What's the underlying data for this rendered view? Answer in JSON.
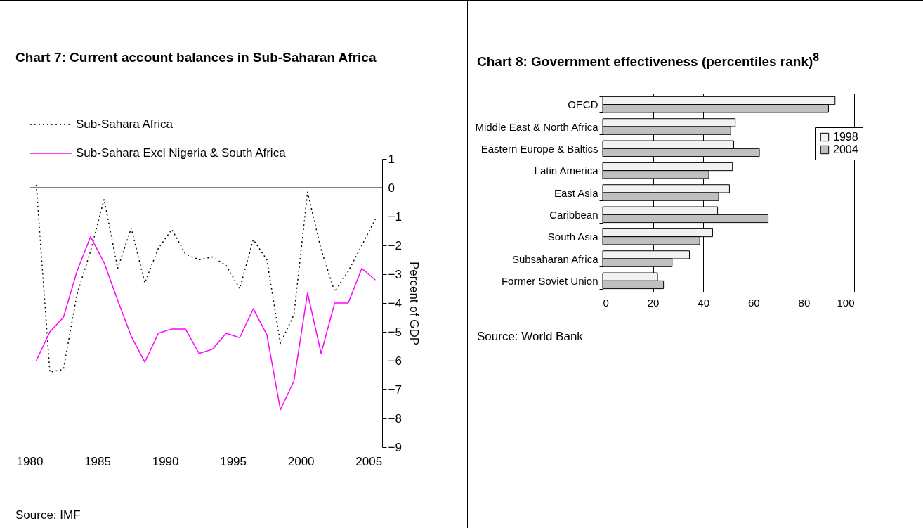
{
  "chart_data": [
    {
      "type": "line",
      "title": "Chart 7: Current account balances in Sub-Saharan Africa",
      "ylabel": "Percent of GDP",
      "x": [
        1980,
        1981,
        1982,
        1983,
        1984,
        1985,
        1986,
        1987,
        1988,
        1989,
        1990,
        1991,
        1992,
        1993,
        1994,
        1995,
        1996,
        1997,
        1998,
        1999,
        2000,
        2001,
        2002,
        2003,
        2004,
        2005
      ],
      "series": [
        {
          "name": "Sub-Sahara Africa",
          "color": "#000000",
          "line_style": "dotted",
          "values": [
            0.1,
            -6.4,
            -6.3,
            -3.7,
            -2.2,
            -0.4,
            -2.8,
            -1.4,
            -3.3,
            -2.1,
            -1.45,
            -2.3,
            -2.5,
            -2.4,
            -2.7,
            -3.5,
            -1.8,
            -2.5,
            -5.4,
            -4.4,
            -0.15,
            -2.15,
            -3.6,
            -2.9,
            -2.0,
            -1.1
          ]
        },
        {
          "name": "Sub-Sahara Excl Nigeria & South Africa",
          "color": "#ff00ff",
          "line_style": "solid",
          "values": [
            -6.0,
            -5.0,
            -4.5,
            -2.9,
            -1.7,
            -2.6,
            -3.9,
            -5.15,
            -6.05,
            -5.05,
            -4.9,
            -4.9,
            -5.75,
            -5.6,
            -5.05,
            -5.2,
            -4.2,
            -5.1,
            -7.7,
            -6.7,
            -3.65,
            -5.75,
            -4.0,
            -4.0,
            -2.8,
            -3.2
          ]
        }
      ],
      "xlim": [
        1979.5,
        2005.5
      ],
      "xticks": [
        {
          "value": 1979.5,
          "label": "1980"
        },
        {
          "value": 1984.5,
          "label": "1985"
        },
        {
          "value": 1989.5,
          "label": "1990"
        },
        {
          "value": 1994.5,
          "label": "1995"
        },
        {
          "value": 1999.5,
          "label": "2000"
        },
        {
          "value": 2004.5,
          "label": "2005"
        }
      ],
      "ylim": [
        -9,
        1
      ],
      "yticks": [
        -9,
        -8,
        -7,
        -6,
        -5,
        -4,
        -3,
        -2,
        -1,
        0,
        1
      ],
      "ref_lines": [
        {
          "axis": "y",
          "value": 0,
          "color": "#000000"
        }
      ],
      "grid": false,
      "marker": "none",
      "legend": "top left",
      "annotations": [
        "Source: IMF"
      ]
    },
    {
      "type": "bar",
      "orientation": "horizontal",
      "title": "Chart 8: Government effectiveness (percentiles rank)$^{8}$",
      "categories": [
        "OECD",
        "Middle East & North Africa",
        "Eastern Europe & Baltics",
        "Latin America",
        "East Asia",
        "Caribbean",
        "South Asia",
        "Subsaharan Africa",
        "Former Soviet Union"
      ],
      "series": [
        {
          "name": "1998",
          "color": "#f2f2f2",
          "values": [
            92.4,
            52.7,
            52.1,
            51.6,
            50.4,
            45.7,
            43.7,
            34.5,
            21.8
          ]
        },
        {
          "name": "2004",
          "color": "#c0c0c0",
          "values": [
            89.8,
            50.9,
            62.3,
            42.2,
            46.1,
            65.8,
            38.6,
            27.6,
            24.2
          ]
        }
      ],
      "xlim": [
        0,
        100
      ],
      "xticks": [
        0,
        20,
        40,
        60,
        80,
        100
      ],
      "grid": "x",
      "legend": "right",
      "annotations": [
        "Source: World Bank"
      ]
    }
  ]
}
